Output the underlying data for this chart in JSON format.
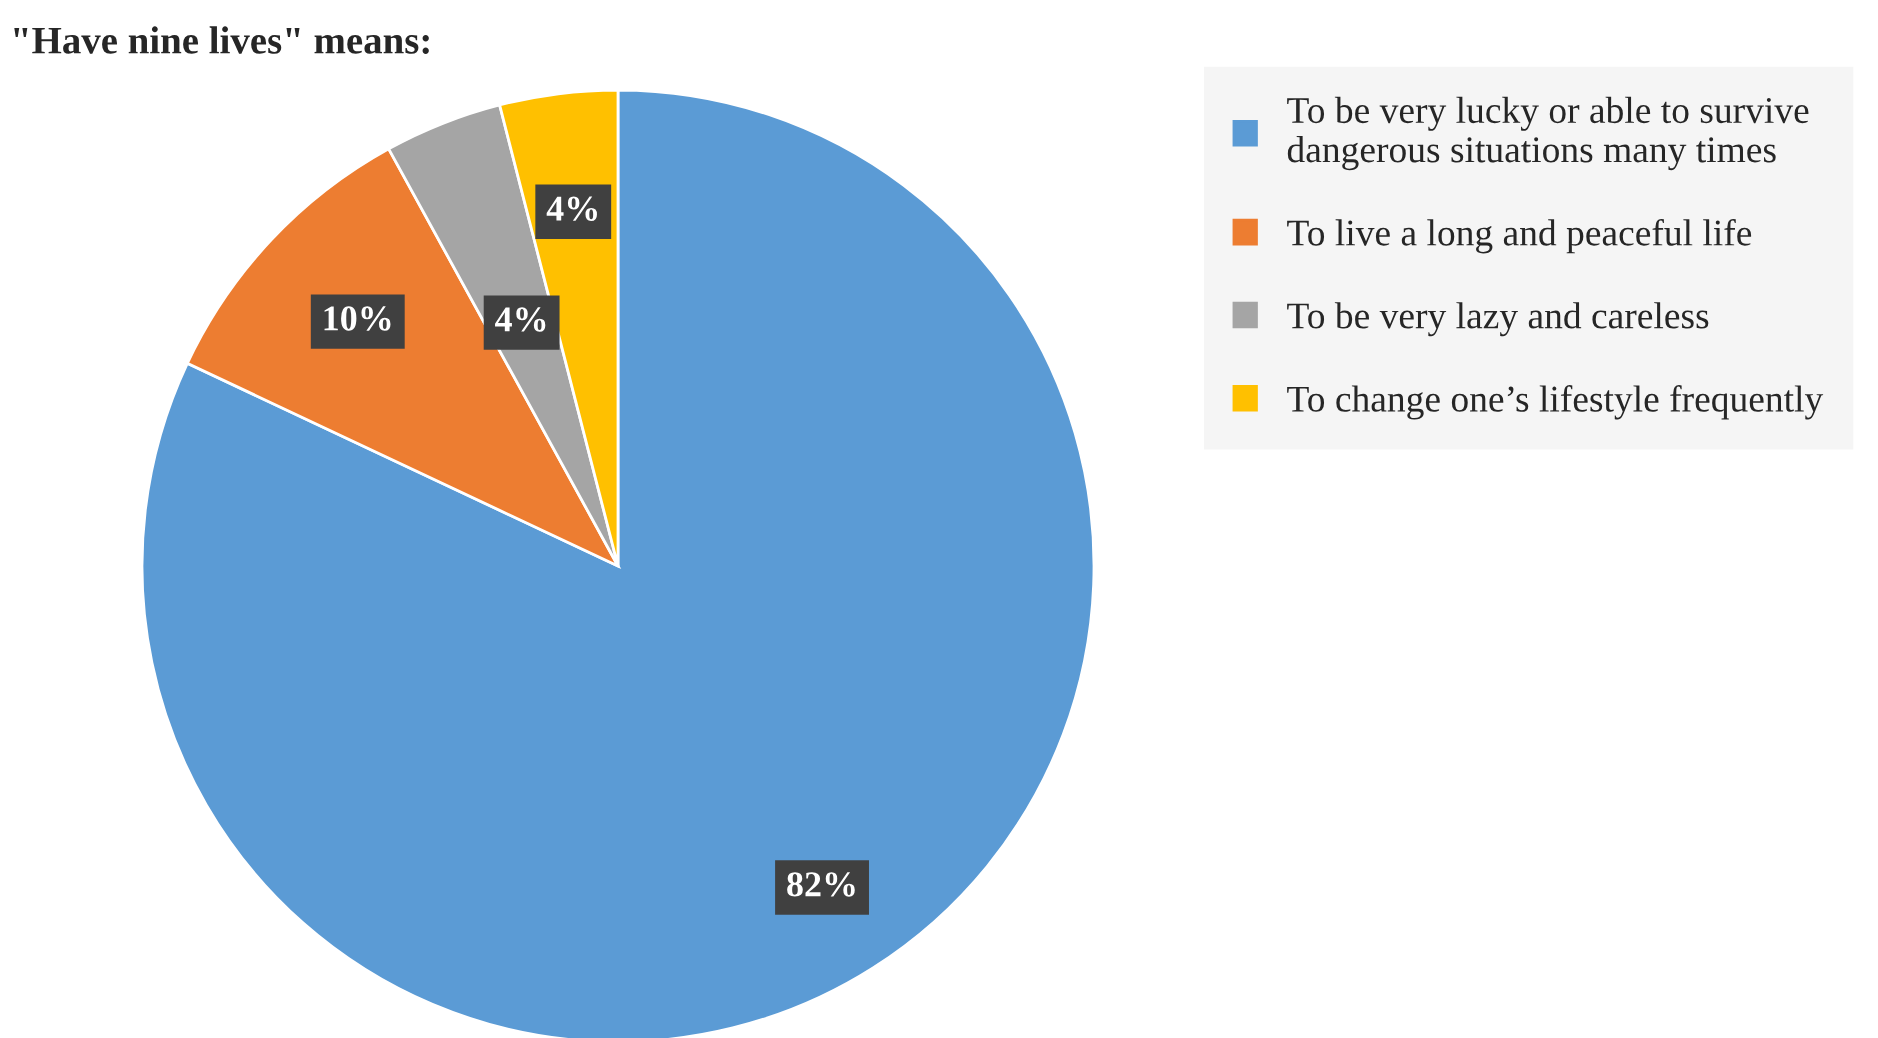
{
  "chart_data": {
    "type": "pie",
    "title": "\"Have nine lives\" means:",
    "categories": [
      "To be very lucky or able to survive\ndangerous situations many times",
      "To live a long and peaceful life",
      "To be very lazy and careless",
      "To change one’s lifestyle frequently"
    ],
    "values": [
      82,
      10,
      4,
      4
    ],
    "colors": [
      "#5b9bd5",
      "#ed7d31",
      "#a5a5a5",
      "#ffc000"
    ],
    "value_labels": [
      "82%",
      "10%",
      "4%",
      "4%"
    ],
    "legend": "top right"
  }
}
